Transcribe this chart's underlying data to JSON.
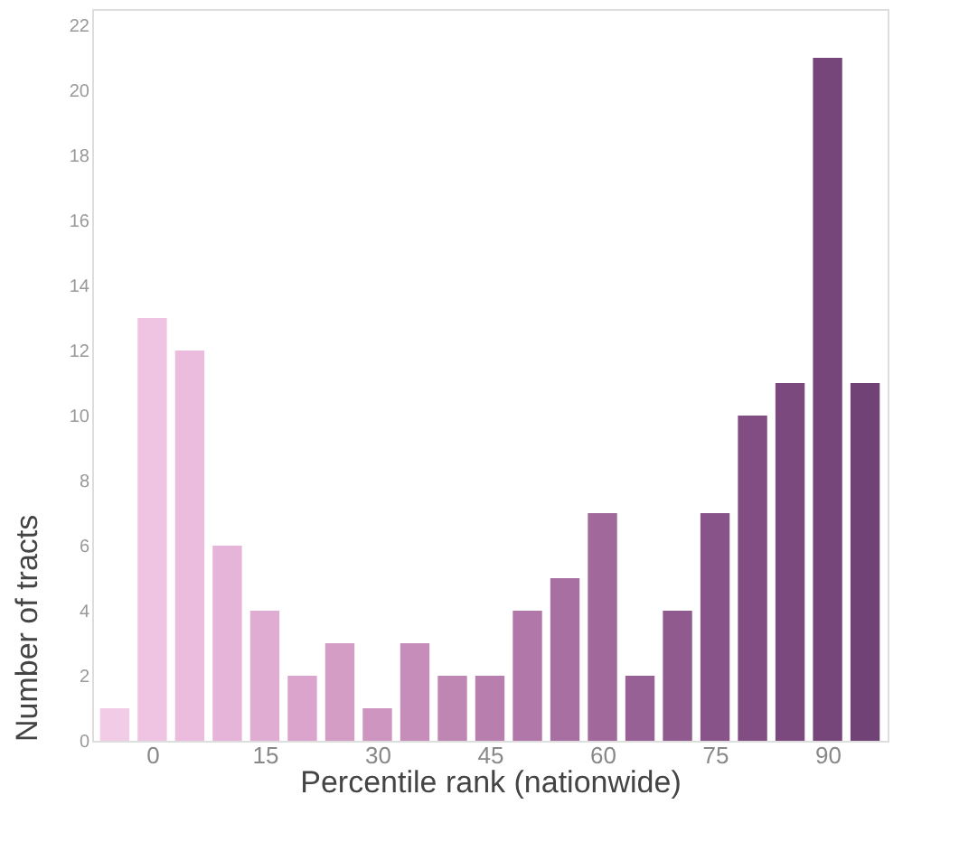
{
  "chart_data": {
    "type": "bar",
    "xlabel": "Percentile rank (nationwide)",
    "ylabel": "Number of tracts",
    "x": [
      -5,
      0,
      5,
      10,
      15,
      20,
      25,
      30,
      35,
      40,
      45,
      50,
      55,
      60,
      65,
      70,
      75,
      80,
      85,
      90,
      95
    ],
    "values": [
      1,
      13,
      12,
      6,
      4,
      2,
      3,
      1,
      3,
      2,
      2,
      4,
      5,
      7,
      2,
      4,
      7,
      10,
      11,
      21,
      11
    ],
    "colors": [
      "#f2cbe6",
      "#efc3e2",
      "#ebbcde",
      "#e6b4d8",
      "#e0acd2",
      "#daa4cc",
      "#d49dc6",
      "#cd95c0",
      "#c68dba",
      "#bf86b4",
      "#b87eae",
      "#b077a8",
      "#a86fa2",
      "#a0689b",
      "#986195",
      "#905a8e",
      "#885388",
      "#814d82",
      "#7b497e",
      "#76457a",
      "#714276"
    ],
    "xlim": [
      -8,
      98
    ],
    "xticks": [
      0,
      15,
      30,
      45,
      60,
      75,
      90
    ],
    "ylim": [
      0,
      22.5
    ],
    "yticks": [
      0,
      2,
      4,
      6,
      8,
      10,
      12,
      14,
      16,
      18,
      20,
      22
    ],
    "grid": false,
    "legend": false
  }
}
